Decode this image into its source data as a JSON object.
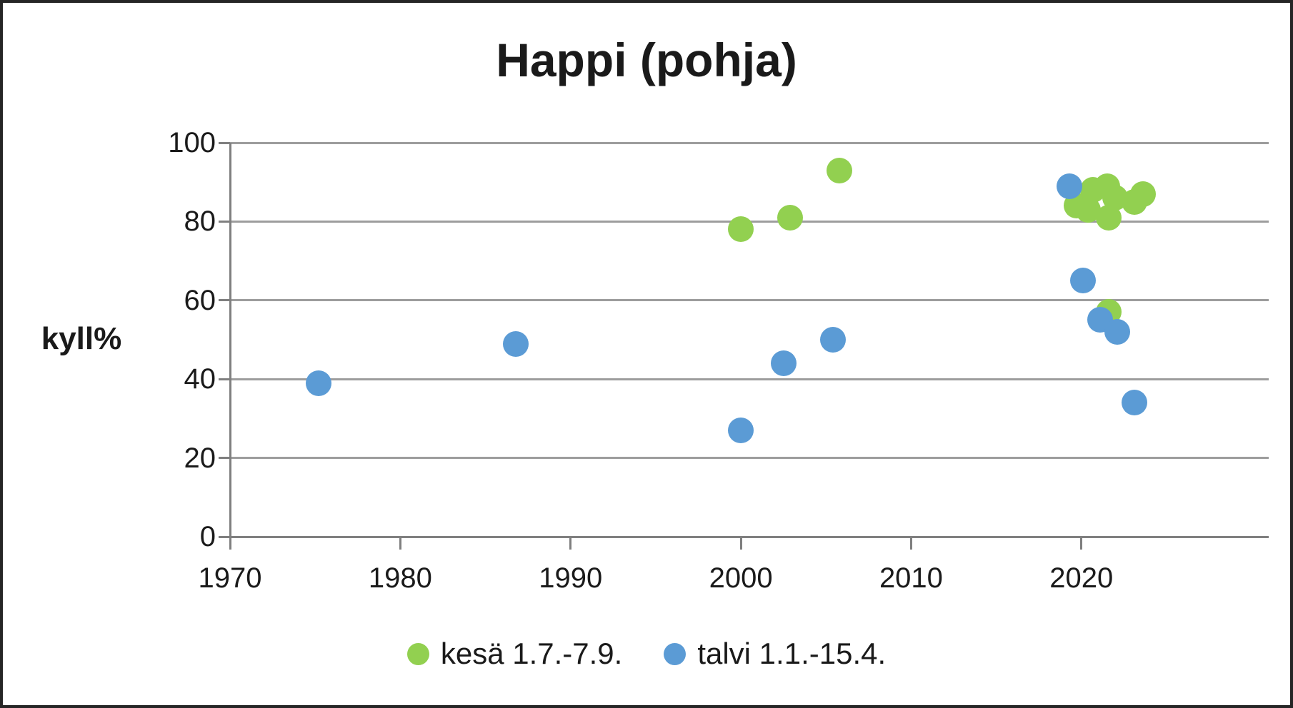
{
  "chart": {
    "title": "Happi (pohja)",
    "y_axis_title": "kyll%"
  },
  "chart_data": {
    "type": "scatter",
    "title": "Happi (pohja)",
    "xlabel": "",
    "ylabel": "kyll%",
    "xlim": [
      1970,
      2031
    ],
    "ylim": [
      0,
      100
    ],
    "x_ticks": [
      1970,
      1980,
      1990,
      2000,
      2010,
      2020
    ],
    "y_ticks": [
      0,
      20,
      40,
      60,
      80,
      100
    ],
    "grid": "horizontal-only",
    "legend_position": "bottom",
    "marker_diameter_px": 36,
    "colors": {
      "summer_green": "#92d050",
      "winter_blue": "#5b9bd5",
      "gridline_gray": "#9d9d9d"
    },
    "series": [
      {
        "name": "kesä 1.7.-7.9.",
        "color": "#92d050",
        "points": [
          {
            "x": 2000.0,
            "y": 78
          },
          {
            "x": 2002.9,
            "y": 81
          },
          {
            "x": 2005.8,
            "y": 93
          },
          {
            "x": 2019.7,
            "y": 84
          },
          {
            "x": 2020.4,
            "y": 83
          },
          {
            "x": 2020.7,
            "y": 88
          },
          {
            "x": 2021.5,
            "y": 89
          },
          {
            "x": 2021.6,
            "y": 81
          },
          {
            "x": 2021.6,
            "y": 57
          },
          {
            "x": 2022.0,
            "y": 86
          },
          {
            "x": 2023.1,
            "y": 85
          },
          {
            "x": 2023.6,
            "y": 87
          }
        ]
      },
      {
        "name": "talvi 1.1.-15.4.",
        "color": "#5b9bd5",
        "points": [
          {
            "x": 1975.2,
            "y": 39
          },
          {
            "x": 1986.8,
            "y": 49
          },
          {
            "x": 2000.0,
            "y": 27
          },
          {
            "x": 2002.5,
            "y": 44
          },
          {
            "x": 2005.4,
            "y": 50
          },
          {
            "x": 2019.3,
            "y": 89
          },
          {
            "x": 2020.1,
            "y": 65
          },
          {
            "x": 2021.1,
            "y": 55
          },
          {
            "x": 2022.1,
            "y": 52
          },
          {
            "x": 2023.1,
            "y": 34
          }
        ]
      }
    ]
  }
}
